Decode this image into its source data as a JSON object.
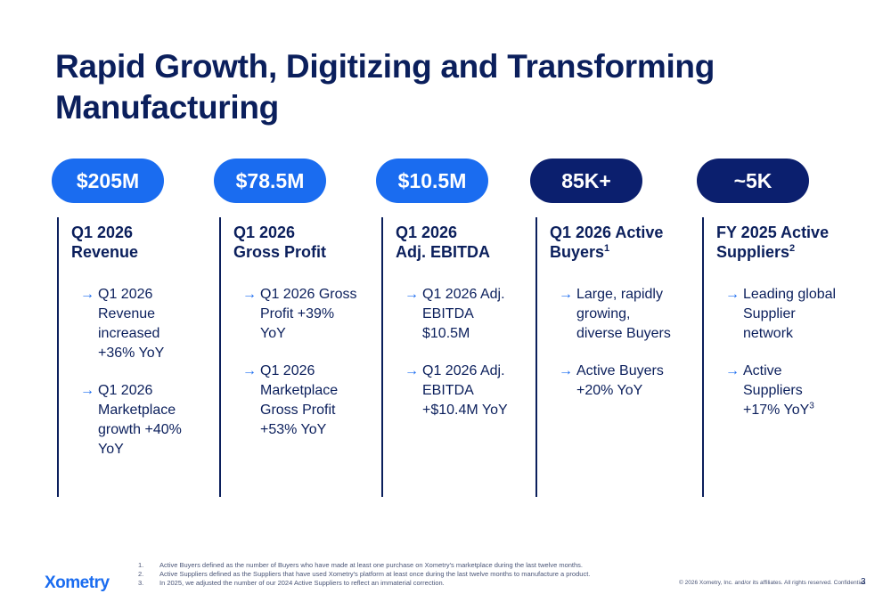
{
  "title": "Rapid Growth, Digitizing and Transforming Manufacturing",
  "colors": {
    "blue": "#1a6cf0",
    "navy": "#0b1f6e",
    "text": "#0b1f5c"
  },
  "columns": [
    {
      "pill": "$205M",
      "pill_color": "blue",
      "heading_line1": "Q1 2026",
      "heading_line2": "Revenue",
      "heading_sup": "",
      "bullets": [
        {
          "text": "Q1 2026 Revenue increased +36% YoY",
          "sup": ""
        },
        {
          "text": "Q1 2026 Marketplace growth +40% YoY",
          "sup": ""
        }
      ]
    },
    {
      "pill": "$78.5M",
      "pill_color": "blue",
      "heading_line1": "Q1 2026",
      "heading_line2": "Gross Profit",
      "heading_sup": "",
      "bullets": [
        {
          "text": "Q1 2026 Gross Profit +39% YoY",
          "sup": ""
        },
        {
          "text": "Q1 2026 Marketplace Gross Profit +53% YoY",
          "sup": ""
        }
      ]
    },
    {
      "pill": "$10.5M",
      "pill_color": "blue",
      "heading_line1": "Q1 2026",
      "heading_line2": "Adj. EBITDA",
      "heading_sup": "",
      "bullets": [
        {
          "text": "Q1 2026 Adj. EBITDA $10.5M",
          "sup": ""
        },
        {
          "text": "Q1 2026 Adj. EBITDA +$10.4M YoY",
          "sup": ""
        }
      ]
    },
    {
      "pill": "85K+",
      "pill_color": "navy",
      "heading_line1": "Q1 2026 Active",
      "heading_line2": "Buyers",
      "heading_sup": "1",
      "bullets": [
        {
          "text": "Large, rapidly growing, diverse Buyers",
          "sup": ""
        },
        {
          "text": "Active Buyers +20% YoY",
          "sup": ""
        }
      ]
    },
    {
      "pill": "~5K",
      "pill_color": "navy",
      "heading_line1": "FY 2025 Active",
      "heading_line2": "Suppliers",
      "heading_sup": "2",
      "bullets": [
        {
          "text": "Leading global Supplier network",
          "sup": ""
        },
        {
          "text": "Active Suppliers +17% YoY",
          "sup": "3"
        }
      ]
    }
  ],
  "footnotes": [
    {
      "num": "1.",
      "text": "Active Buyers defined as the number of Buyers who have made at least one purchase on Xometry's marketplace during the last twelve months."
    },
    {
      "num": "2.",
      "text": "Active Suppliers defined as the Suppliers that have used Xometry's platform at least once during the last twelve months to manufacture a product."
    },
    {
      "num": "3.",
      "text": "In 2025, we adjusted the number of our 2024 Active Suppliers to reflect an immaterial correction."
    }
  ],
  "logo": "Xometry",
  "copyright": "© 2026 Xometry, Inc. and/or its affiliates. All rights reserved. Confidential.",
  "page_number": "3"
}
